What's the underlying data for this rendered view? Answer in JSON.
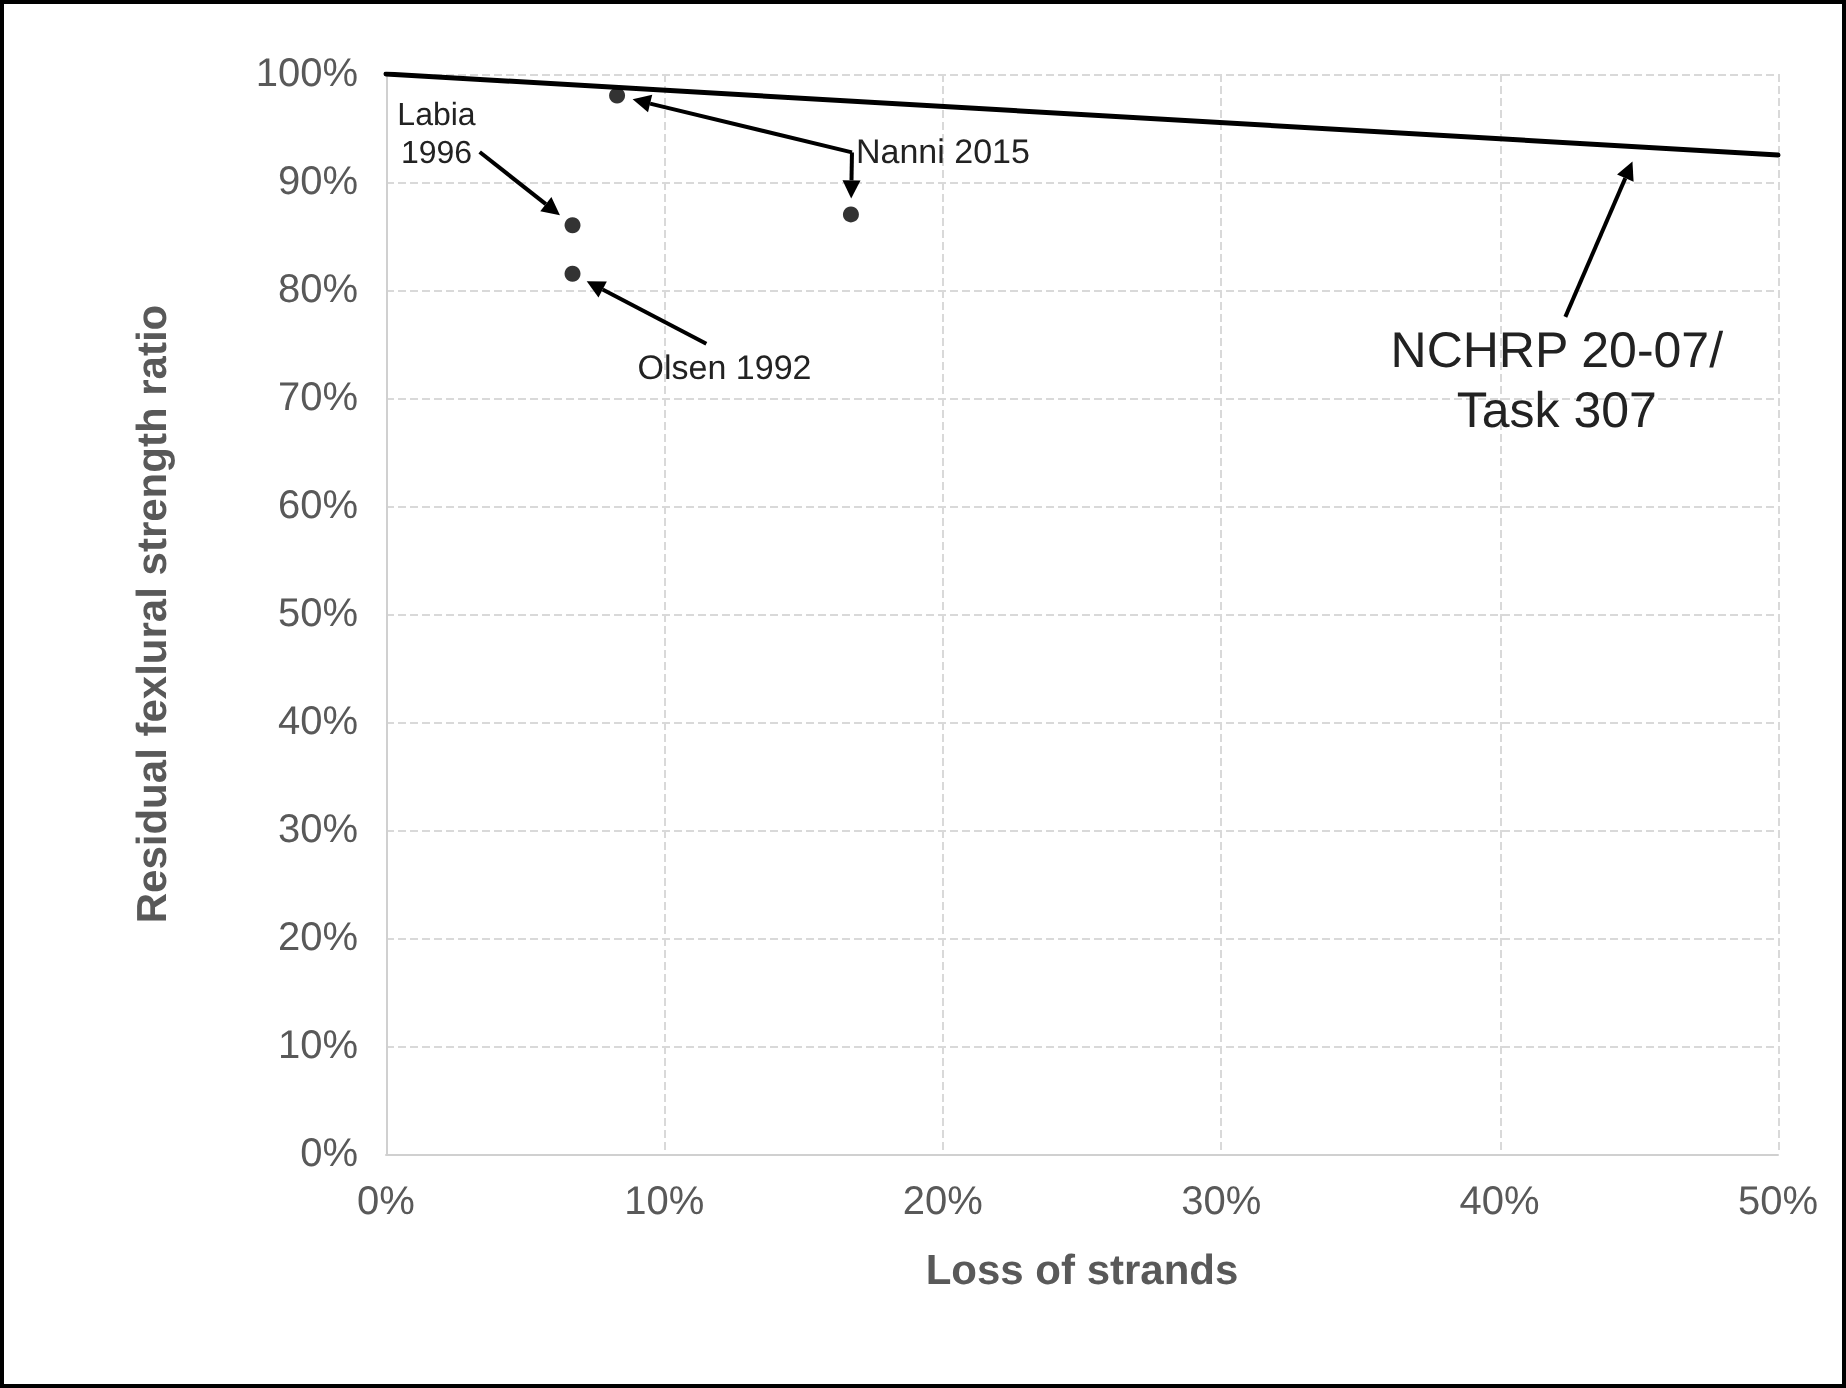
{
  "chart_data": {
    "type": "scatter",
    "xlabel": "Loss of strands",
    "ylabel": "Residual fexlural strength ratio",
    "series": [
      {
        "color": "#000000",
        "marker": "circle",
        "x": [
          8.3,
          6.7,
          6.7,
          16.7
        ],
        "values": [
          98,
          86,
          81.5,
          87
        ]
      },
      {
        "type": "line",
        "color": "#000000",
        "marker": "none",
        "line_style": "solid",
        "x": [
          0,
          50
        ],
        "values": [
          100,
          92.5
        ]
      }
    ],
    "xlim": [
      0,
      50
    ],
    "xticks": [
      {
        "value": 0,
        "label": "0%"
      },
      {
        "value": 10,
        "label": "10%"
      },
      {
        "value": 20,
        "label": "20%"
      },
      {
        "value": 30,
        "label": "30%"
      },
      {
        "value": 40,
        "label": "40%"
      },
      {
        "value": 50,
        "label": "50%"
      }
    ],
    "ylim": [
      0,
      100
    ],
    "yticks": [
      {
        "value": 0,
        "label": "0%"
      },
      {
        "value": 10,
        "label": "10%"
      },
      {
        "value": 20,
        "label": "20%"
      },
      {
        "value": 30,
        "label": "30%"
      },
      {
        "value": 40,
        "label": "40%"
      },
      {
        "value": 50,
        "label": "50%"
      },
      {
        "value": 60,
        "label": "60%"
      },
      {
        "value": 70,
        "label": "70%"
      },
      {
        "value": 80,
        "label": "80%"
      },
      {
        "value": 90,
        "label": "90%"
      },
      {
        "value": 100,
        "label": "100%"
      }
    ],
    "grid": true,
    "annotations": [
      "Labia\n1996",
      "Olsen 1992",
      "Nanni 2015",
      "NCHRP 20-07/\nTask 307"
    ]
  }
}
